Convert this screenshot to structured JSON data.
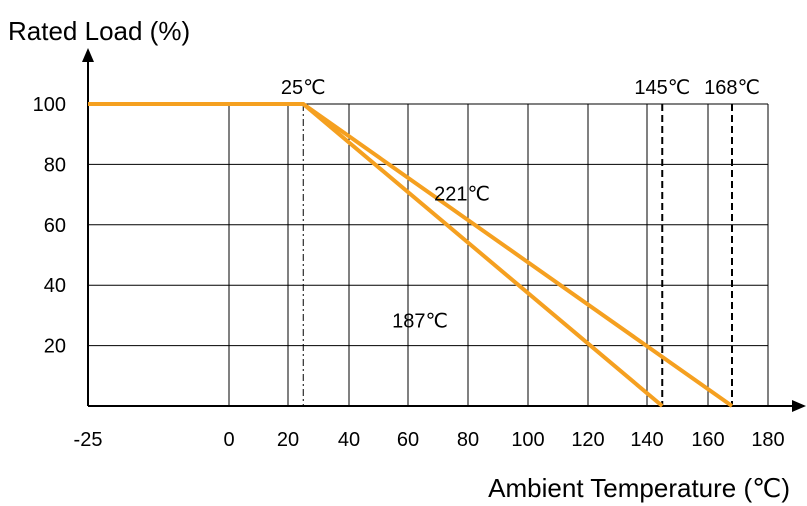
{
  "chart_data": {
    "type": "line",
    "ylabel": "Rated Load (%)",
    "xlabel": "Ambient Temperature (℃)",
    "xlim": [
      -25,
      180
    ],
    "ylim": [
      0,
      100
    ],
    "x_ticks": [
      {
        "value": -25,
        "label": "-25"
      },
      {
        "value": 0,
        "label": "0"
      },
      {
        "value": 20,
        "label": "20"
      },
      {
        "value": 40,
        "label": "40"
      },
      {
        "value": 60,
        "label": "60"
      },
      {
        "value": 80,
        "label": "80"
      },
      {
        "value": 100,
        "label": "100"
      },
      {
        "value": 120,
        "label": "120"
      },
      {
        "value": 140,
        "label": "140"
      },
      {
        "value": 160,
        "label": "160"
      },
      {
        "value": 180,
        "label": "180"
      }
    ],
    "y_ticks": [
      {
        "value": 20,
        "label": "20"
      },
      {
        "value": 40,
        "label": "40"
      },
      {
        "value": 60,
        "label": "60"
      },
      {
        "value": 80,
        "label": "80"
      },
      {
        "value": 100,
        "label": "100"
      }
    ],
    "grid": true,
    "series": [
      {
        "x": [
          -25,
          25,
          145
        ],
        "y": [
          100,
          100,
          0
        ]
      },
      {
        "x": [
          -25,
          25,
          168
        ],
        "y": [
          100,
          100,
          0
        ]
      }
    ],
    "reference_lines": [
      {
        "x": 25,
        "style": "dash-dot",
        "label": "25℃"
      },
      {
        "x": 145,
        "style": "dashed",
        "label": "145℃"
      },
      {
        "x": 168,
        "style": "dashed",
        "label": "168℃"
      }
    ],
    "annotations": [
      {
        "text": "221℃",
        "x": 78,
        "y": 68
      },
      {
        "text": "187℃",
        "x": 64,
        "y": 26
      }
    ],
    "colors": {
      "line": "#f5a020",
      "grid": "#000000",
      "axis": "#000000"
    }
  }
}
